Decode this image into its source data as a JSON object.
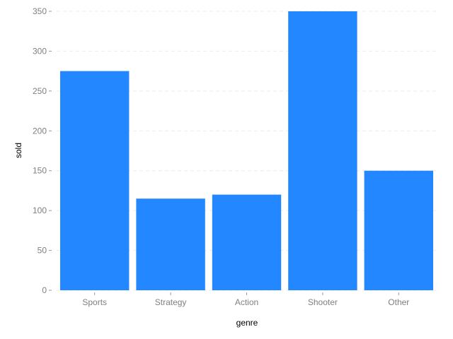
{
  "chart_data": {
    "type": "bar",
    "categories": [
      "Sports",
      "Strategy",
      "Action",
      "Shooter",
      "Other"
    ],
    "values": [
      275,
      115,
      120,
      350,
      150
    ],
    "xlabel": "genre",
    "ylabel": "sold",
    "ylim": [
      0,
      350
    ],
    "yticks": [
      0,
      50,
      100,
      150,
      200,
      250,
      300,
      350
    ],
    "grid": true,
    "bar_color": "#2388ff",
    "grid_color": "#ececec",
    "tick_label_color": "#7f7f7f"
  }
}
